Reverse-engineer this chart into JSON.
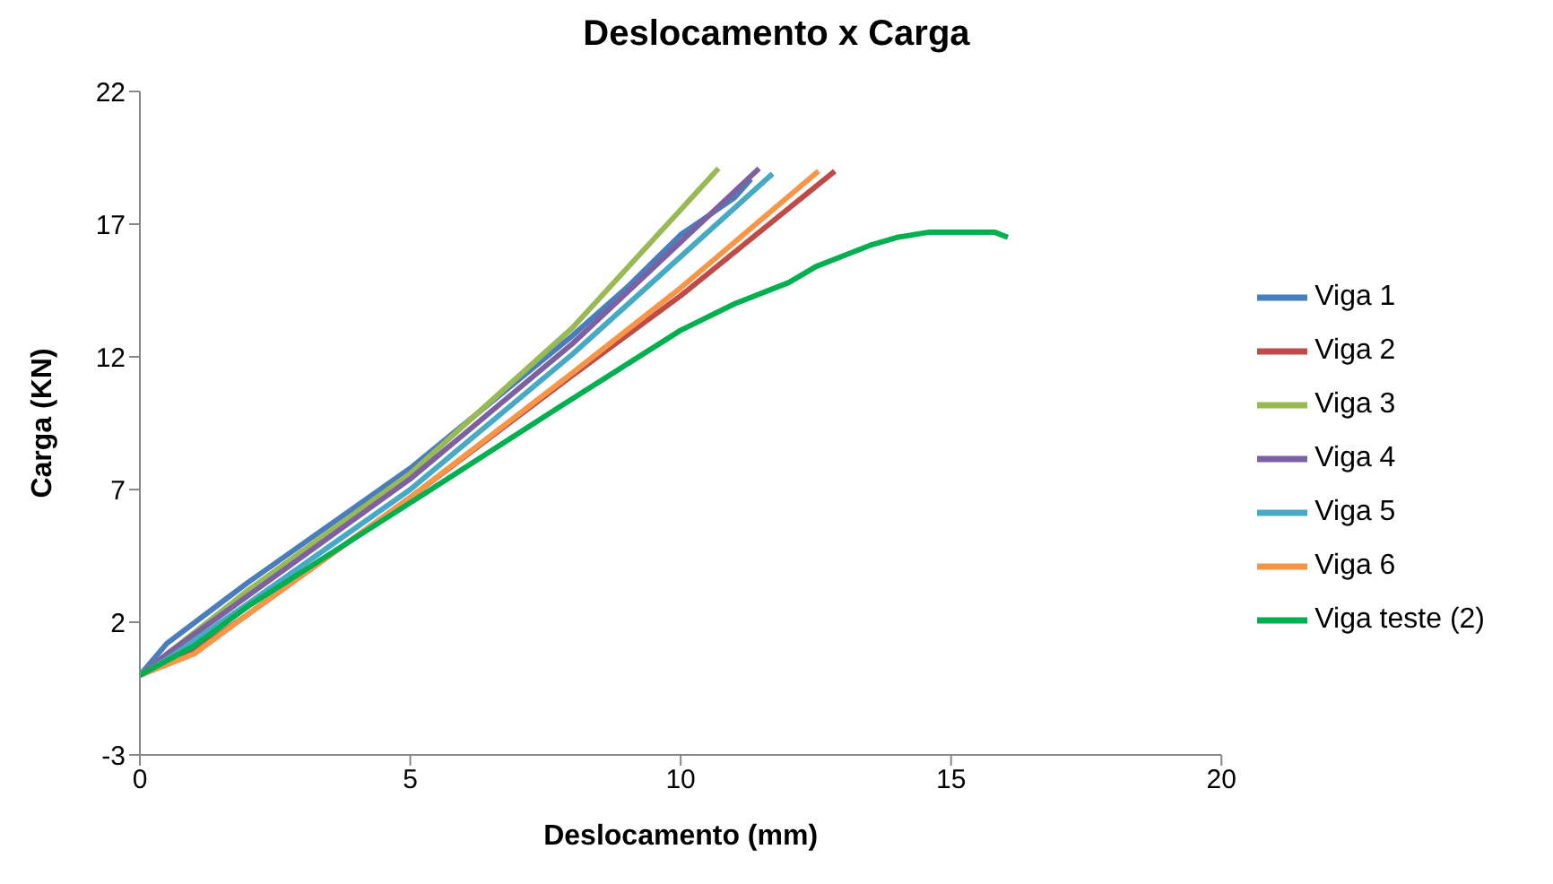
{
  "chart_data": {
    "type": "line",
    "title": "Deslocamento x Carga",
    "xlabel": "Deslocamento (mm)",
    "ylabel": "Carga (KN)",
    "xlim": [
      0,
      20
    ],
    "xticks": [
      0,
      5,
      10,
      15,
      20
    ],
    "ylim": [
      -3,
      22
    ],
    "yticks": [
      -3,
      2,
      7,
      12,
      17,
      22
    ],
    "grid": false,
    "legend": "right",
    "marker": "none",
    "line_style": "solid",
    "series": [
      {
        "name": "Viga 1",
        "color": "#4a7ebb",
        "x": [
          0,
          0.5,
          2,
          5,
          8,
          9,
          9.5,
          10,
          10.5,
          11,
          11.3
        ],
        "values": [
          0,
          1.2,
          3.5,
          7.8,
          12.8,
          14.6,
          15.6,
          16.6,
          17.3,
          18,
          18.7
        ]
      },
      {
        "name": "Viga 2",
        "color": "#be4b48",
        "x": [
          0,
          1,
          2,
          5,
          8,
          10,
          12.85
        ],
        "values": [
          0,
          0.9,
          2.3,
          6.7,
          11.3,
          14.3,
          19
        ]
      },
      {
        "name": "Viga 3",
        "color": "#98b954",
        "x": [
          0,
          0.5,
          2,
          5,
          8,
          10.7
        ],
        "values": [
          0,
          0.8,
          3.2,
          7.6,
          13.1,
          19.1
        ]
      },
      {
        "name": "Viga 4",
        "color": "#7d60a0",
        "x": [
          0,
          0.5,
          2,
          5,
          8,
          11.45
        ],
        "values": [
          0,
          0.8,
          3,
          7.4,
          12.5,
          19.1
        ]
      },
      {
        "name": "Viga 5",
        "color": "#46aac5",
        "x": [
          0,
          0.5,
          2,
          5,
          8,
          11.7
        ],
        "values": [
          0,
          0.6,
          2.7,
          7,
          12.1,
          18.9
        ]
      },
      {
        "name": "Viga 6",
        "color": "#f79646",
        "x": [
          0,
          1,
          2,
          5,
          8,
          10,
          12.55
        ],
        "values": [
          0,
          0.8,
          2.3,
          6.7,
          11.4,
          14.6,
          19
        ]
      },
      {
        "name": "Viga teste (2)",
        "color": "#00b050",
        "x": [
          0,
          1,
          2,
          5,
          7.75,
          10,
          11,
          12,
          12.5,
          13,
          13.5,
          14,
          14.6,
          15,
          15.8,
          16.05
        ],
        "values": [
          0,
          1.1,
          2.6,
          6.5,
          10.1,
          13,
          14,
          14.8,
          15.4,
          15.8,
          16.2,
          16.5,
          16.7,
          16.7,
          16.7,
          16.5
        ]
      }
    ]
  }
}
